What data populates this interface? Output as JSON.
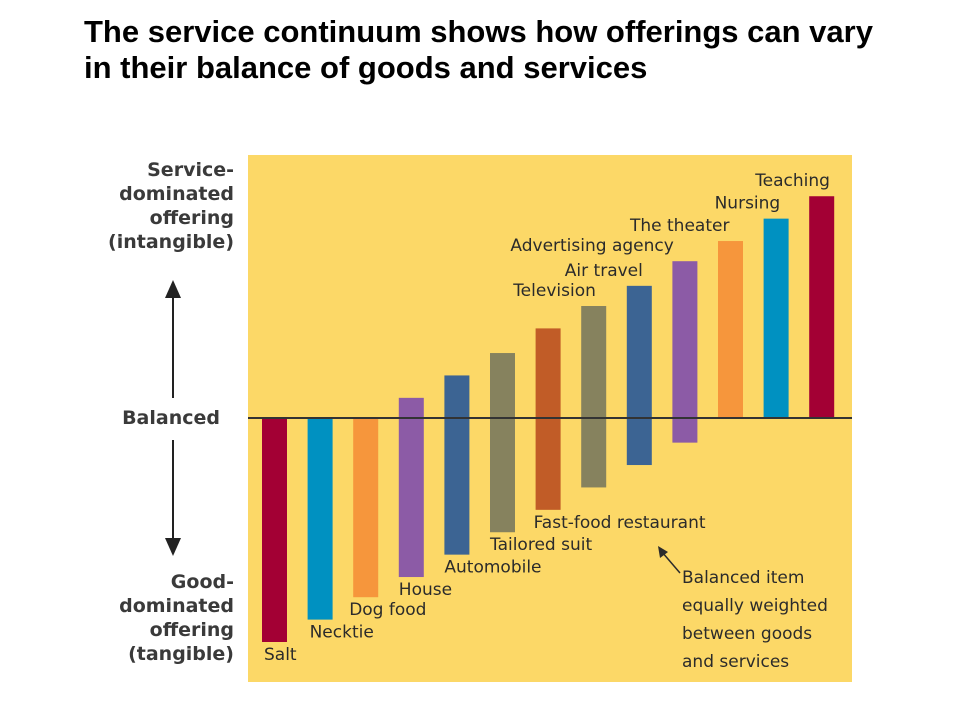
{
  "title": "The service continuum shows how offerings can vary in their balance of goods and services",
  "left_axis": {
    "top_label": [
      "Service-",
      "dominated",
      "offering",
      "(intangible)"
    ],
    "middle_label": "Balanced",
    "bottom_label": [
      "Good-",
      "dominated",
      "offering",
      "(tangible)"
    ]
  },
  "annotation": [
    "Balanced item",
    "equally weighted",
    "between goods",
    "and services"
  ],
  "colors": {
    "background": "#FCD867",
    "baseline": "#333333"
  },
  "chart_data": {
    "type": "bar",
    "description_type": "floating bars around a balanced baseline",
    "ylim": [
      -100,
      100
    ],
    "categories": [
      "Salt",
      "Necktie",
      "Dog food",
      "House",
      "Automobile",
      "Tailored suit",
      "Fast-food restaurant",
      "Television",
      "Air travel",
      "Advertising agency",
      "The theater",
      "Nursing",
      "Teaching"
    ],
    "ranges": [
      [
        -100,
        0
      ],
      [
        -90,
        0
      ],
      [
        -80,
        0
      ],
      [
        -71,
        9
      ],
      [
        -61,
        19
      ],
      [
        -51,
        29
      ],
      [
        -41,
        40
      ],
      [
        -31,
        50
      ],
      [
        -21,
        59
      ],
      [
        -11,
        70
      ],
      [
        0,
        79
      ],
      [
        0,
        89
      ],
      [
        0,
        99
      ]
    ],
    "bar_colors": [
      "#A30034",
      "#0091C1",
      "#F6963C",
      "#8C5BA6",
      "#3C6493",
      "#86825E",
      "#C15C27",
      "#86825E",
      "#3C6493",
      "#8C5BA6",
      "#F6963C",
      "#0091C1",
      "#A30034"
    ]
  }
}
